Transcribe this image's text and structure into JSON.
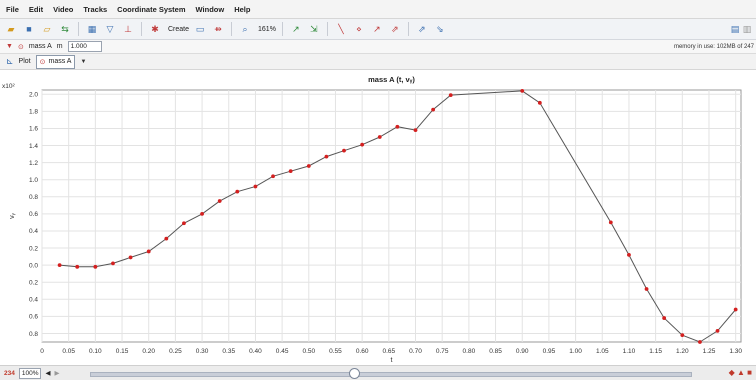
{
  "menu": [
    "File",
    "Edit",
    "Video",
    "Tracks",
    "Coordinate System",
    "Window",
    "Help"
  ],
  "toolbar": {
    "create_label": "Create",
    "zoom_label": "161%"
  },
  "massbar": {
    "track_name": "mass A",
    "mass_label": "m",
    "mass_value": "1.000",
    "memory": "memory in use: 102MB of 247"
  },
  "plotbar": {
    "plot_label": "Plot",
    "track_select": "mass A"
  },
  "chart_data": {
    "type": "line",
    "title": "mass A (t, vᵧ)",
    "xlabel": "t",
    "ylabel": "vᵧ",
    "exponent_label": "x10²",
    "xlim": [
      0,
      1.31
    ],
    "ylim": [
      -0.9,
      2.05
    ],
    "x_ticks": [
      0,
      0.05,
      0.1,
      0.15,
      0.2,
      0.25,
      0.3,
      0.35,
      0.4,
      0.45,
      0.5,
      0.55,
      0.6,
      0.65,
      0.7,
      0.75,
      0.8,
      0.85,
      0.9,
      0.95,
      1.0,
      1.05,
      1.1,
      1.15,
      1.2,
      1.25,
      1.3
    ],
    "x_tick_labels": [
      "0",
      "0.05",
      "0.10",
      "0.15",
      "0.20",
      "0.25",
      "0.30",
      "0.35",
      "0.40",
      "0.45",
      "0.50",
      "0.55",
      "0.60",
      "0.65",
      "0.70",
      "0.75",
      "0.80",
      "0.85",
      "0.90",
      "0.95",
      "1.00",
      "1.05",
      "1.10",
      "1.15",
      "1.20",
      "1.25",
      "1.30"
    ],
    "y_ticks": [
      2.0,
      1.8,
      1.6,
      1.4,
      1.2,
      1.0,
      0.8,
      0.6,
      0.4,
      0.2,
      0.0,
      -0.2,
      -0.4,
      -0.6,
      -0.8
    ],
    "y_tick_labels": [
      "2.0",
      "1.8",
      "1.6",
      "1.4",
      "1.2",
      "1.0",
      "0.8",
      "0.6",
      "0.4",
      "0.2",
      "0.0",
      "0.2",
      "0.4",
      "0.6",
      "0.8"
    ],
    "grid": true,
    "series": [
      {
        "color": "#d42020",
        "line_color": "#555555",
        "points": [
          [
            0.033,
            0.0
          ],
          [
            0.066,
            -0.02
          ],
          [
            0.1,
            -0.02
          ],
          [
            0.133,
            0.02
          ],
          [
            0.166,
            0.09
          ],
          [
            0.2,
            0.16
          ],
          [
            0.233,
            0.31
          ],
          [
            0.266,
            0.49
          ],
          [
            0.3,
            0.6
          ],
          [
            0.333,
            0.75
          ],
          [
            0.366,
            0.86
          ],
          [
            0.4,
            0.92
          ],
          [
            0.433,
            1.04
          ],
          [
            0.466,
            1.1
          ],
          [
            0.5,
            1.16
          ],
          [
            0.533,
            1.27
          ],
          [
            0.566,
            1.34
          ],
          [
            0.6,
            1.41
          ],
          [
            0.633,
            1.5
          ],
          [
            0.666,
            1.62
          ],
          [
            0.7,
            1.58
          ],
          [
            0.733,
            1.82
          ],
          [
            0.766,
            1.99
          ],
          [
            0.9,
            2.04
          ],
          [
            0.933,
            1.9
          ],
          [
            1.066,
            0.5
          ],
          [
            1.1,
            0.12
          ],
          [
            1.133,
            -0.28
          ],
          [
            1.166,
            -0.62
          ],
          [
            1.2,
            -0.82
          ],
          [
            1.233,
            -0.9
          ],
          [
            1.266,
            -0.77
          ],
          [
            1.3,
            -0.52
          ]
        ]
      }
    ]
  },
  "bottom": {
    "frame": "234",
    "zoom": "100%",
    "icons": "◆ ▲ ■"
  }
}
